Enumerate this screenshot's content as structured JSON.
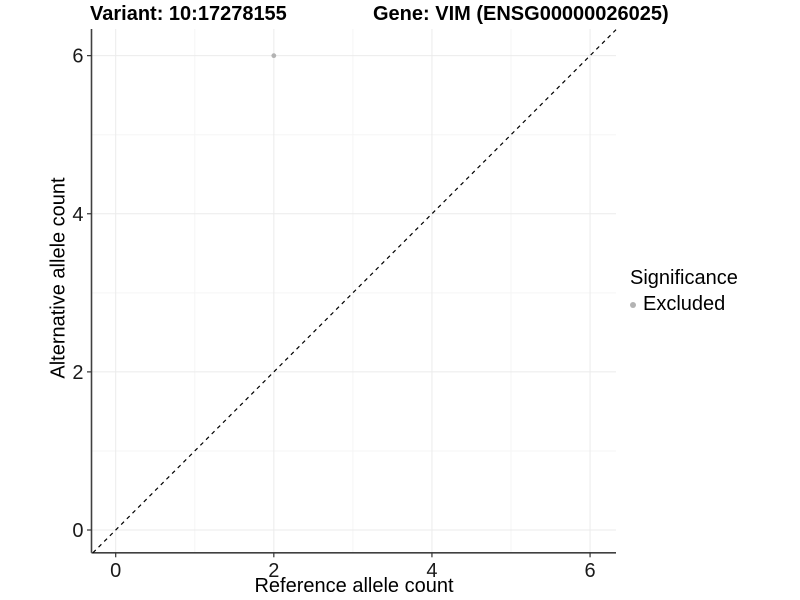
{
  "titles": {
    "variant": "Variant: 10:17278155",
    "gene": "Gene: VIM (ENSG00000026025)"
  },
  "legend": {
    "title": "Significance",
    "position": "right",
    "items": [
      {
        "label": "Excluded",
        "color": "#b3b3b3",
        "marker": "dot"
      }
    ]
  },
  "chart_data": {
    "type": "scatter",
    "title_left": "Variant: 10:17278155",
    "title_right": "Gene: VIM (ENSG00000026025)",
    "xlabel": "Reference allele count",
    "ylabel": "Alternative allele count",
    "xlim": [
      -0.31,
      6.33
    ],
    "ylim": [
      -0.3,
      6.33
    ],
    "x_ticks": [
      0,
      2,
      4,
      6
    ],
    "y_ticks": [
      0,
      2,
      4,
      6
    ],
    "x_minor_ticks": [
      1,
      3,
      5
    ],
    "y_minor_ticks": [
      1,
      3,
      5
    ],
    "grid": true,
    "legend_position": "right",
    "series": [
      {
        "name": "Excluded",
        "color": "#b3b3b3",
        "points": [
          {
            "x": 2,
            "y": 6
          }
        ]
      }
    ],
    "reference_line": {
      "type": "identity",
      "slope": 1,
      "intercept": 0,
      "style": "dashed",
      "color": "#000000"
    },
    "colors": {
      "grid_major": "#ebebeb",
      "grid_minor": "#f5f5f5",
      "axis_line": "#404040",
      "tick_mark": "#333333",
      "tick_label": "#1a1a1a",
      "point": "#b3b3b3",
      "background": "#ffffff"
    }
  }
}
